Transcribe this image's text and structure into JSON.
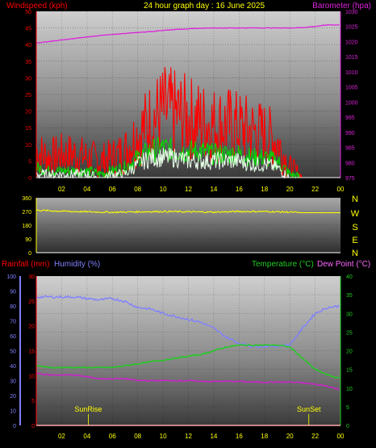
{
  "header": {
    "wind_label": "Windspeed (kph)",
    "title": "24 hour graph day : 16 June 2025",
    "baro_label": "Barometer (hpa)"
  },
  "middle": {
    "compass": [
      "N",
      "W",
      "S",
      "E",
      "N"
    ]
  },
  "bottom_header": {
    "rain_label": "Rainfall (mm)",
    "hum_label": "Humidity (%)",
    "temp_label": "Temperature (°C)",
    "dew_label": "Dew Point (°C)"
  },
  "annotations": {
    "sunrise": "SunRise",
    "sunset": "SunSet"
  },
  "colors": {
    "wind": "#ff0000",
    "gust_green": "#00dd00",
    "avg_white": "#e8ffe8",
    "baro": "#dd22dd",
    "direction": "#ffff00",
    "rain": "#ff0000",
    "humidity": "#8080ff",
    "temperature": "#22cc22",
    "dewpoint": "#cc22cc"
  },
  "chart_data": [
    {
      "type": "line",
      "title": "24 hour graph day : 16 June 2025",
      "xlabel": "",
      "x_ticks": [
        "02",
        "04",
        "06",
        "08",
        "10",
        "12",
        "14",
        "16",
        "18",
        "20",
        "22",
        "00"
      ],
      "ylabel": "Windspeed (kph)",
      "ylim": [
        0,
        50
      ],
      "y_ticks": [
        0,
        5,
        10,
        15,
        20,
        25,
        30,
        35,
        40,
        45,
        50
      ],
      "ylabel_right": "Barometer (hpa)",
      "ylim_right": [
        975,
        1030
      ],
      "y_ticks_right": [
        975,
        980,
        985,
        990,
        995,
        1000,
        1005,
        1010,
        1015,
        1020,
        1025,
        1030
      ],
      "series": [
        {
          "name": "Windspeed (kph)",
          "axis": "left",
          "x": [
            0,
            1,
            2,
            3,
            4,
            5,
            6,
            7,
            8,
            9,
            10,
            11,
            12,
            13,
            14,
            15,
            16,
            17,
            18,
            19,
            20,
            21,
            22,
            23,
            24
          ],
          "values": [
            8,
            6,
            7,
            7,
            6,
            5,
            6,
            8,
            13,
            17,
            20,
            19,
            18,
            17,
            16,
            16,
            15,
            14,
            13,
            11,
            3,
            0,
            0,
            0,
            0
          ]
        },
        {
          "name": "",
          "axis": "left",
          "x": [
            0,
            1,
            2,
            3,
            4,
            5,
            6,
            7,
            8,
            9,
            10,
            11,
            12,
            13,
            14,
            15,
            16,
            17,
            18,
            19,
            20,
            21,
            22,
            23,
            24
          ],
          "values": [
            3,
            2,
            2,
            2,
            2,
            1,
            2,
            3,
            6,
            8,
            9,
            8,
            8,
            8,
            7,
            7,
            7,
            6,
            6,
            5,
            1,
            0,
            0,
            0,
            0
          ]
        },
        {
          "name": "",
          "axis": "left",
          "x": [
            0,
            1,
            2,
            3,
            4,
            5,
            6,
            7,
            8,
            9,
            10,
            11,
            12,
            13,
            14,
            15,
            16,
            17,
            18,
            19,
            20,
            21,
            22,
            23,
            24
          ],
          "values": [
            1,
            1,
            1,
            1,
            1,
            0,
            1,
            1,
            4,
            6,
            6,
            6,
            5,
            5,
            5,
            5,
            5,
            4,
            4,
            3,
            0,
            0,
            0,
            0,
            0
          ]
        },
        {
          "name": "Barometer (hpa)",
          "axis": "right",
          "x": [
            0,
            1,
            2,
            3,
            4,
            5,
            6,
            7,
            8,
            9,
            10,
            11,
            12,
            13,
            14,
            15,
            16,
            17,
            18,
            19,
            20,
            21,
            22,
            23,
            24
          ],
          "values": [
            1019.5,
            1020,
            1020.5,
            1021,
            1021.5,
            1022,
            1022.3,
            1022.7,
            1023,
            1023.3,
            1023.7,
            1024,
            1024.2,
            1024.4,
            1024.5,
            1024.5,
            1024.5,
            1024.5,
            1024.5,
            1024.5,
            1024.5,
            1024.6,
            1025,
            1025.5,
            1025.5
          ]
        }
      ]
    },
    {
      "type": "line",
      "title": "",
      "x_ticks": [
        "02",
        "04",
        "06",
        "08",
        "10",
        "12",
        "14",
        "16",
        "18",
        "20",
        "22",
        "00"
      ],
      "ylabel": "",
      "ylim": [
        0,
        360
      ],
      "y_ticks": [
        0,
        90,
        180,
        270,
        360
      ],
      "series": [
        {
          "name": "",
          "x": [
            0,
            2,
            4,
            6,
            8,
            10,
            12,
            14,
            16,
            18,
            20,
            21,
            24
          ],
          "values": [
            278,
            272,
            268,
            265,
            268,
            270,
            268,
            266,
            270,
            270,
            266,
            262,
            262
          ]
        }
      ]
    },
    {
      "type": "line",
      "title": "",
      "x_ticks": [
        "02",
        "04",
        "06",
        "08",
        "10",
        "12",
        "14",
        "16",
        "18",
        "20",
        "22",
        "00"
      ],
      "ylabel": "Rainfall (mm) / Humidity (%)",
      "y_ticks_rain": [
        0,
        5,
        10,
        15,
        20,
        25,
        30
      ],
      "ylim_rain": [
        0,
        30
      ],
      "y_ticks_hum": [
        0,
        10,
        20,
        30,
        40,
        50,
        60,
        70,
        80,
        90,
        100
      ],
      "ylim_hum": [
        0,
        100
      ],
      "ylabel_right": "Temperature (°C) / Dew Point (°C)",
      "y_ticks_temp": [
        0,
        5,
        10,
        15,
        20,
        25,
        30,
        35,
        40
      ],
      "ylim_temp": [
        0,
        40
      ],
      "series": [
        {
          "name": "Rainfall (mm)",
          "axis": "rain",
          "x": [
            0,
            24
          ],
          "values": [
            0,
            0
          ]
        },
        {
          "name": "Humidity (%)",
          "axis": "hum",
          "x": [
            0,
            1,
            2,
            3,
            4,
            5,
            6,
            7,
            8,
            9,
            10,
            11,
            12,
            13,
            14,
            15,
            16,
            17,
            18,
            19,
            20,
            21,
            22,
            23,
            24
          ],
          "values": [
            86,
            86,
            86,
            86,
            85,
            84,
            85,
            83,
            79,
            78,
            75,
            73,
            71,
            69,
            65,
            59,
            55,
            53,
            53,
            53,
            54,
            65,
            75,
            79,
            80
          ]
        },
        {
          "name": "Temperature (°C)",
          "axis": "temp",
          "x": [
            0,
            1,
            2,
            3,
            4,
            5,
            6,
            7,
            8,
            9,
            10,
            11,
            12,
            13,
            14,
            15,
            16,
            17,
            18,
            19,
            20,
            21,
            22,
            23,
            24
          ],
          "values": [
            16,
            15.5,
            15.5,
            15.5,
            15.5,
            15.5,
            15.5,
            16,
            16.5,
            17,
            17.5,
            18,
            18.5,
            19,
            20,
            21,
            21.5,
            21.5,
            21.5,
            21.5,
            21,
            18,
            15,
            13.5,
            12.5
          ]
        },
        {
          "name": "Dew Point (°C)",
          "axis": "temp",
          "x": [
            0,
            1,
            2,
            3,
            4,
            5,
            6,
            7,
            8,
            9,
            10,
            11,
            12,
            13,
            14,
            15,
            16,
            17,
            18,
            19,
            20,
            21,
            22,
            23,
            24
          ],
          "values": [
            14,
            13.5,
            13.5,
            13.5,
            13,
            12.5,
            12.5,
            12.5,
            12,
            12,
            12,
            12,
            12,
            11.8,
            11.8,
            11.8,
            11.8,
            11.6,
            11.6,
            11.6,
            11.6,
            11.4,
            11,
            10.5,
            9.5
          ]
        }
      ],
      "annotations": [
        {
          "label": "SunRise",
          "x": 4.1
        },
        {
          "label": "SunSet",
          "x": 21.5
        }
      ]
    }
  ]
}
